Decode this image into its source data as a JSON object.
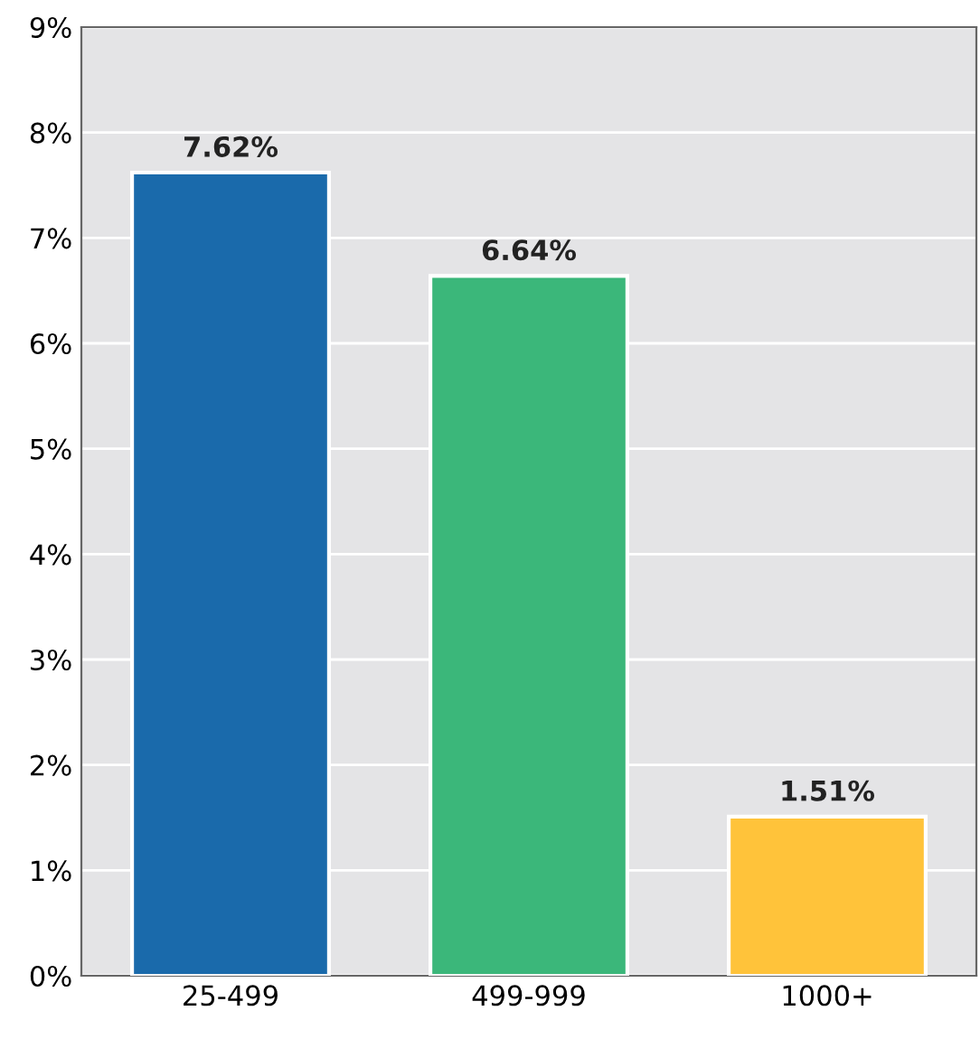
{
  "chart_data": {
    "type": "bar",
    "categories": [
      "25-499",
      "499-999",
      "1000+"
    ],
    "values": [
      7.62,
      6.64,
      1.51
    ],
    "colors": [
      "#1a6aab",
      "#3bb77a",
      "#ffc33a"
    ],
    "value_labels": [
      "7.62%",
      "6.64%",
      "1.51%"
    ],
    "ylim": [
      0,
      9
    ],
    "yticks": [
      {
        "value": 0,
        "label": "0%"
      },
      {
        "value": 1,
        "label": "1%"
      },
      {
        "value": 2,
        "label": "2%"
      },
      {
        "value": 3,
        "label": "3%"
      },
      {
        "value": 4,
        "label": "4%"
      },
      {
        "value": 5,
        "label": "5%"
      },
      {
        "value": 6,
        "label": "6%"
      },
      {
        "value": 7,
        "label": "7%"
      },
      {
        "value": 8,
        "label": "8%"
      },
      {
        "value": 9,
        "label": "9%"
      }
    ],
    "grid": "y",
    "legend": false
  }
}
